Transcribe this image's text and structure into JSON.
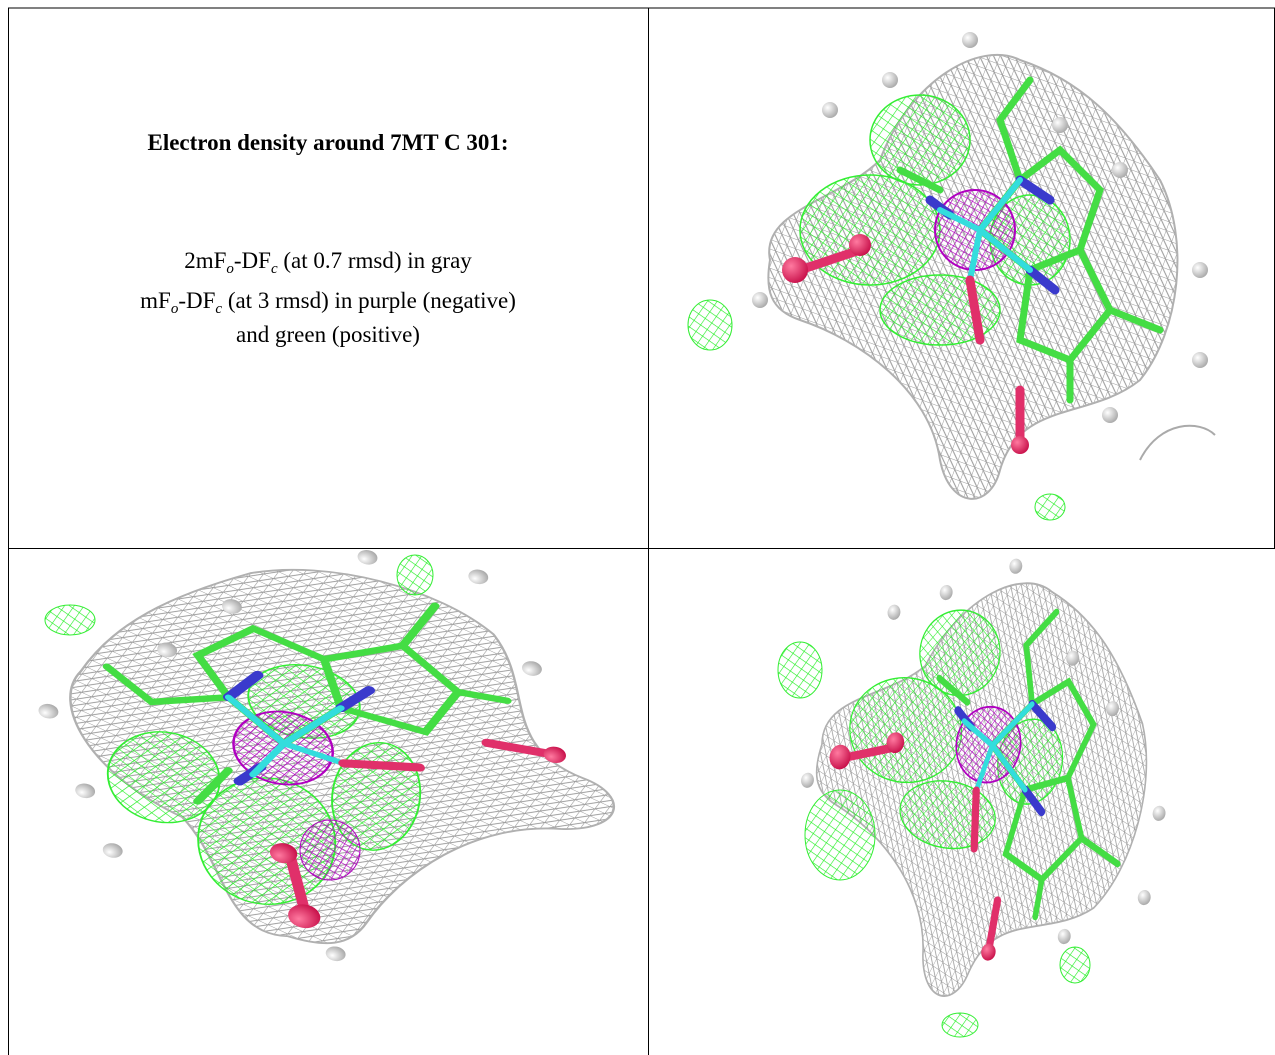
{
  "caption": {
    "title": "Electron density around 7MT C 301:",
    "legend": [
      {
        "parts": [
          {
            "text": "2mF"
          },
          {
            "sub": "o"
          },
          {
            "text": "-DF"
          },
          {
            "sub": "c"
          },
          {
            "text": " (at 0.7 rmsd) in gray"
          }
        ]
      },
      {
        "parts": [
          {
            "text": "mF"
          },
          {
            "sub": "o"
          },
          {
            "text": "-DF"
          },
          {
            "sub": "c"
          },
          {
            "text": " (at 3 rmsd) in purple (negative)"
          }
        ]
      },
      {
        "parts": [
          {
            "text": "and green (positive)"
          }
        ]
      }
    ]
  }
}
